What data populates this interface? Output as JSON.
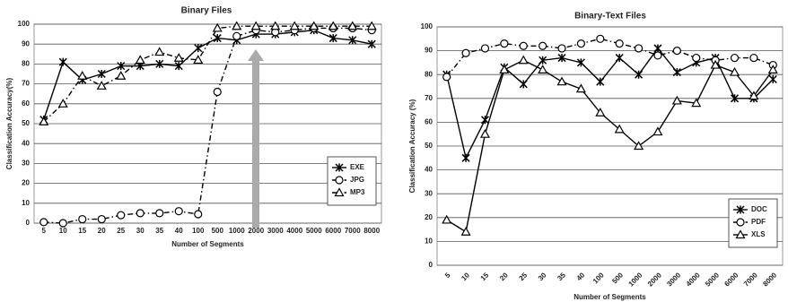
{
  "chart_data": [
    {
      "type": "line",
      "title": "Binary Files",
      "x_label": "Number of Segments",
      "y_label": "Classification Accuracy(%)",
      "categories": [
        "5",
        "10",
        "15",
        "20",
        "25",
        "30",
        "35",
        "40",
        "100",
        "500",
        "1000",
        "2000",
        "3000",
        "4000",
        "5000",
        "6000",
        "7000",
        "8000"
      ],
      "series": [
        {
          "name": "EXE",
          "color": "#000000",
          "marker": "star",
          "dash": "solid",
          "values": [
            52,
            81,
            72,
            75,
            79,
            79,
            80,
            79,
            88,
            93,
            92,
            95,
            95,
            96,
            97,
            93,
            92,
            90
          ]
        },
        {
          "name": "JPG",
          "color": "#000000",
          "marker": "circle",
          "dash": "dashdot",
          "values": [
            0.5,
            0,
            2,
            2,
            4,
            5,
            5,
            6,
            4.5,
            66,
            94,
            97,
            96,
            97,
            98,
            98,
            98,
            97
          ]
        },
        {
          "name": "MP3",
          "color": "#000000",
          "marker": "triangle",
          "dash": "dashdot",
          "values": [
            51,
            60,
            74,
            69,
            74,
            82,
            86,
            83,
            82,
            98,
            99,
            99,
            99,
            99,
            99,
            99,
            99,
            99
          ]
        }
      ],
      "ylim": [
        0,
        100
      ],
      "yticks": [
        0,
        10,
        20,
        30,
        40,
        50,
        60,
        70,
        80,
        90,
        100
      ],
      "grid": true,
      "legend": "lower right",
      "xtick_rotation": 0
    },
    {
      "type": "line",
      "title": "Binary-Text Files",
      "x_label": "Number of Segments",
      "y_label": "Classification Accuracy (%)",
      "categories": [
        "5",
        "10",
        "15",
        "20",
        "25",
        "30",
        "35",
        "40",
        "100",
        "500",
        "1000",
        "2000",
        "3000",
        "4000",
        "5000",
        "6000",
        "7000",
        "8000"
      ],
      "series": [
        {
          "name": "DOC",
          "color": "#000000",
          "marker": "star",
          "dash": "solid",
          "values": [
            80,
            45,
            61,
            83,
            76,
            86,
            87,
            85,
            77,
            87,
            80,
            91,
            81,
            85,
            87,
            70,
            70,
            78
          ]
        },
        {
          "name": "PDF",
          "color": "#000000",
          "marker": "circle",
          "dash": "dashdot",
          "values": [
            79,
            89,
            91,
            93,
            92,
            92,
            91,
            93,
            95,
            93,
            91,
            88,
            90,
            87,
            86,
            87,
            87,
            84
          ]
        },
        {
          "name": "XLS",
          "color": "#000000",
          "marker": "triangle",
          "dash": "solid",
          "values": [
            19,
            14,
            55,
            82,
            86,
            82,
            77,
            74,
            64,
            57,
            50,
            56,
            69,
            68,
            84,
            81,
            71,
            82
          ]
        }
      ],
      "ylim": [
        0,
        100
      ],
      "yticks": [
        0,
        10,
        20,
        30,
        40,
        50,
        60,
        70,
        80,
        90,
        100
      ],
      "grid": true,
      "legend": "lower right",
      "xtick_rotation": -45
    }
  ]
}
